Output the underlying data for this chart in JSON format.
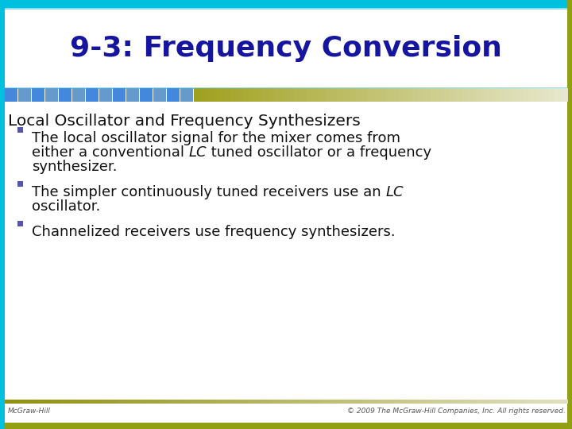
{
  "title": "9-3: Frequency Conversion",
  "title_color": "#1515a0",
  "bg_color": "#ffffff",
  "border_left_color": "#00aacc",
  "border_right_color": "#8aaa20",
  "section_heading": "Local Oscillator and Frequency Synthesizers",
  "bullet_square_color": "#5555aa",
  "footer_left": "McGraw-Hill",
  "footer_right": "© 2009 The McGraw-Hill Companies, Inc. All rights reserved.",
  "checker_blue": "#4488dd",
  "checker_light": "#88bbee",
  "sep_olive_start": "#a0a020",
  "sep_olive_end": "#e8e8c0",
  "title_bg": "#ffffff",
  "title_border_top": "#88ccee",
  "title_border_bottom": "#88ccee",
  "outer_border_olive": "#99aa10",
  "outer_border_cyan": "#00b8d8"
}
